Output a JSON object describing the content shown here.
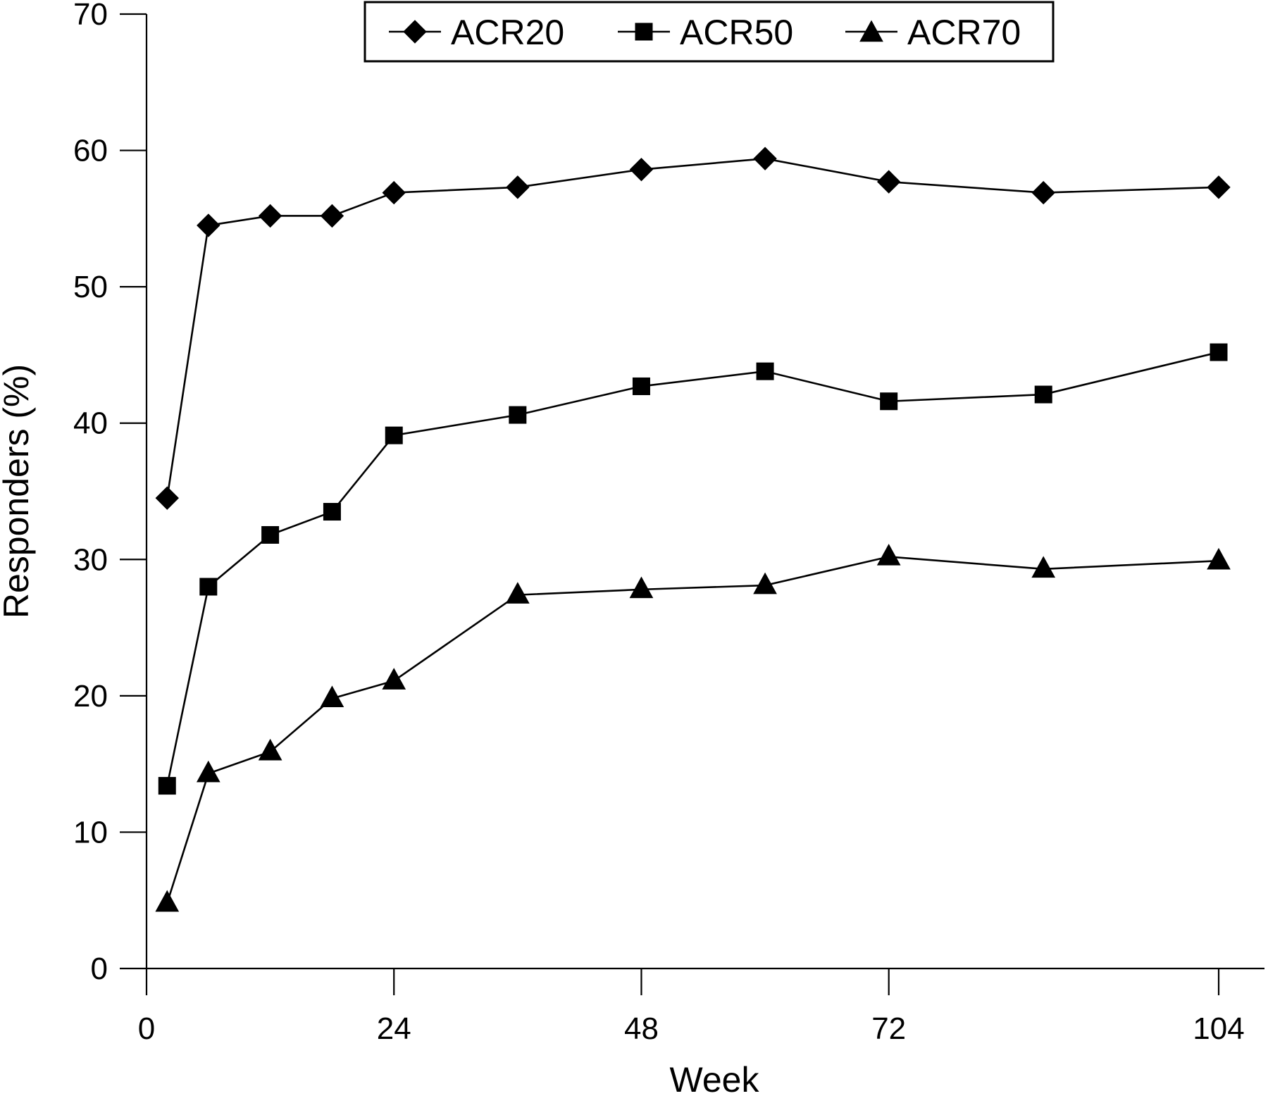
{
  "chart_data": {
    "type": "line",
    "title": "",
    "xlabel": "Week",
    "ylabel": "Responders (%)",
    "xlim": [
      0,
      104
    ],
    "ylim": [
      0,
      70
    ],
    "x_ticks": [
      {
        "value": 0,
        "label": "0"
      },
      {
        "value": 24,
        "label": "24"
      },
      {
        "value": 48,
        "label": "48"
      },
      {
        "value": 72,
        "label": "72"
      },
      {
        "value": 104,
        "label": "104"
      }
    ],
    "y_ticks": [
      {
        "value": 0,
        "label": "0"
      },
      {
        "value": 10,
        "label": "10"
      },
      {
        "value": 20,
        "label": "20"
      },
      {
        "value": 30,
        "label": "30"
      },
      {
        "value": 40,
        "label": "40"
      },
      {
        "value": 50,
        "label": "50"
      },
      {
        "value": 60,
        "label": "60"
      },
      {
        "value": 70,
        "label": "70"
      }
    ],
    "grid": false,
    "legend_position": "top",
    "x": [
      2,
      6,
      12,
      18,
      24,
      36,
      48,
      60,
      72,
      87,
      104
    ],
    "series": [
      {
        "name": "ACR20",
        "marker": "diamond",
        "color": "#000000",
        "values": [
          34.5,
          54.5,
          55.2,
          55.2,
          56.9,
          57.3,
          58.6,
          59.4,
          57.7,
          56.9,
          57.3
        ]
      },
      {
        "name": "ACR50",
        "marker": "square",
        "color": "#000000",
        "values": [
          13.4,
          28.0,
          31.8,
          33.5,
          39.1,
          40.6,
          42.7,
          43.8,
          41.6,
          42.1,
          45.2
        ]
      },
      {
        "name": "ACR70",
        "marker": "triangle",
        "color": "#000000",
        "values": [
          4.8,
          14.3,
          15.9,
          19.8,
          21.1,
          27.4,
          27.8,
          28.1,
          30.2,
          29.3,
          29.9
        ]
      }
    ]
  }
}
